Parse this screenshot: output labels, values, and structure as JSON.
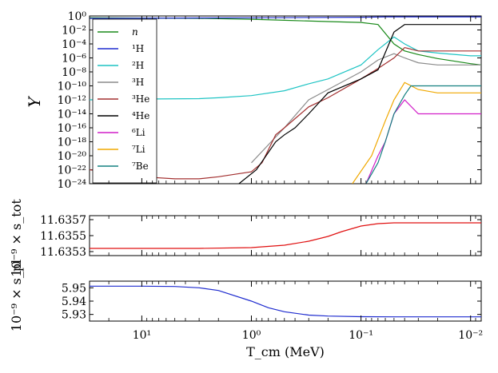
{
  "chart_data": [
    {
      "type": "line",
      "panel": "abundances",
      "ylabel": "Y",
      "xlabel": "",
      "x_scale": "log-reversed",
      "y_scale": "log",
      "xlim": [
        30,
        0.008
      ],
      "ylim": [
        1e-24,
        1
      ],
      "y_ticks": [
        "10^0",
        "10^-2",
        "10^-4",
        "10^-6",
        "10^-8",
        "10^-10",
        "10^-12",
        "10^-14",
        "10^-16",
        "10^-18",
        "10^-20",
        "10^-22",
        "10^-24"
      ],
      "legend_position": "top-left",
      "series": [
        {
          "name": "n",
          "color": "#1a8a1a",
          "x": [
            30,
            3,
            1,
            0.5,
            0.2,
            0.1,
            0.07,
            0.05,
            0.04,
            0.03,
            0.02,
            0.01,
            0.008
          ],
          "y": [
            0.56,
            0.46,
            0.34,
            0.24,
            0.16,
            0.12,
            0.06,
            0.0001,
            1e-05,
            3e-06,
            8e-07,
            1.5e-07,
            1e-07
          ]
        },
        {
          "name": "¹H",
          "color": "#1f2ccf",
          "x": [
            30,
            1,
            0.1,
            0.06,
            0.04,
            0.008
          ],
          "y": [
            0.45,
            0.55,
            0.65,
            0.75,
            0.75,
            0.75
          ]
        },
        {
          "name": "²H",
          "color": "#1fc4c4",
          "x": [
            30,
            10,
            3,
            2,
            1,
            0.5,
            0.3,
            0.2,
            0.1,
            0.07,
            0.05,
            0.04,
            0.03,
            0.02,
            0.01,
            0.008
          ],
          "y": [
            1e-12,
            1.3e-12,
            1.5e-12,
            2e-12,
            4e-12,
            2e-11,
            2e-10,
            1e-09,
            1e-07,
            1.5e-05,
            0.001,
            0.0001,
            1e-05,
            5e-06,
            2e-06,
            2e-06
          ]
        },
        {
          "name": "³H",
          "color": "#8c8c8c",
          "x": [
            1,
            0.5,
            0.3,
            0.2,
            0.1,
            0.07,
            0.05,
            0.04,
            0.03,
            0.02,
            0.01,
            0.008
          ],
          "y": [
            1e-21,
            1e-16,
            1e-12,
            3e-11,
            1e-08,
            5e-07,
            4e-06,
            1e-06,
            2e-07,
            1e-07,
            1e-07,
            1e-07
          ]
        },
        {
          "name": "³He",
          "color": "#a33030",
          "x": [
            30,
            10,
            5,
            3,
            2,
            1,
            0.8,
            0.6,
            0.5,
            0.3,
            0.2,
            0.1,
            0.07,
            0.05,
            0.04,
            0.03,
            0.02,
            0.01,
            0.008
          ],
          "y": [
            1e-22,
            1e-23,
            5e-24,
            5e-24,
            1e-23,
            5e-23,
            1e-21,
            1e-17,
            1e-16,
            1e-13,
            2e-12,
            1e-09,
            3e-08,
            1e-06,
            3e-05,
            1e-05,
            1e-05,
            1e-05,
            1e-05
          ]
        },
        {
          "name": "⁴He",
          "color": "#000000",
          "x": [
            1.3,
            0.9,
            0.6,
            0.5,
            0.4,
            0.3,
            0.2,
            0.1,
            0.07,
            0.05,
            0.04,
            0.03,
            0.02,
            0.01,
            0.008
          ],
          "y": [
            1e-24,
            1e-22,
            1e-18,
            1e-17,
            1e-16,
            1e-14,
            1e-11,
            1e-09,
            2e-08,
            0.005,
            0.06,
            0.06,
            0.06,
            0.06,
            0.06
          ]
        },
        {
          "name": "⁶Li",
          "color": "#d11fc8",
          "x": [
            0.09,
            0.07,
            0.06,
            0.05,
            0.04,
            0.03,
            0.02,
            0.01,
            0.008
          ],
          "y": [
            1e-24,
            1e-20,
            1e-18,
            1e-14,
            1e-12,
            1e-14,
            1e-14,
            1e-14,
            1e-14
          ]
        },
        {
          "name": "⁷Li",
          "color": "#f0a800",
          "x": [
            0.12,
            0.08,
            0.06,
            0.05,
            0.04,
            0.03,
            0.02,
            0.01,
            0.008
          ],
          "y": [
            1e-24,
            1e-20,
            1e-15,
            1e-12,
            3e-10,
            3e-11,
            1e-11,
            1e-11,
            1e-11
          ]
        },
        {
          "name": "⁷Be",
          "color": "#138080",
          "x": [
            0.09,
            0.07,
            0.06,
            0.05,
            0.04,
            0.035,
            0.03,
            0.02,
            0.01,
            0.008
          ],
          "y": [
            1e-24,
            1e-21,
            1e-18,
            1e-14,
            5e-12,
            1e-10,
            1e-10,
            1e-10,
            1e-10,
            1e-10
          ]
        }
      ]
    },
    {
      "type": "line",
      "panel": "entropy-total",
      "ylabel": "10⁻⁹ × s_tot",
      "xlabel": "",
      "ylim": [
        11.63525,
        11.63575
      ],
      "y_ticks": [
        "11.6353",
        "11.6355",
        "11.6357"
      ],
      "series": [
        {
          "name": "",
          "color": "#e01010",
          "x": [
            30,
            10,
            3,
            1,
            0.5,
            0.3,
            0.2,
            0.15,
            0.1,
            0.07,
            0.05,
            0.03,
            0.01,
            0.008
          ],
          "y": [
            11.63534,
            11.63534,
            11.63534,
            11.63535,
            11.63538,
            11.63543,
            11.63549,
            11.63555,
            11.63562,
            11.63565,
            11.63566,
            11.63566,
            11.63566,
            11.63566
          ]
        }
      ]
    },
    {
      "type": "line",
      "panel": "entropy-plasma",
      "ylabel": "10⁻⁹ × s_pl",
      "xlabel": "T_cm (MeV)",
      "ylim": [
        5.925,
        5.955
      ],
      "y_ticks": [
        "5.95",
        "5.94",
        "5.93"
      ],
      "x_ticks": [
        "10^1",
        "10^0",
        "10^-1",
        "10^-2"
      ],
      "series": [
        {
          "name": "",
          "color": "#1f2ccf",
          "x": [
            30,
            10,
            5,
            3,
            2,
            1,
            0.7,
            0.5,
            0.3,
            0.2,
            0.1,
            0.05,
            0.01,
            0.008
          ],
          "y": [
            5.9512,
            5.9512,
            5.951,
            5.95,
            5.948,
            5.94,
            5.935,
            5.932,
            5.9295,
            5.9288,
            5.9283,
            5.9282,
            5.9282,
            5.9282
          ]
        }
      ]
    }
  ]
}
